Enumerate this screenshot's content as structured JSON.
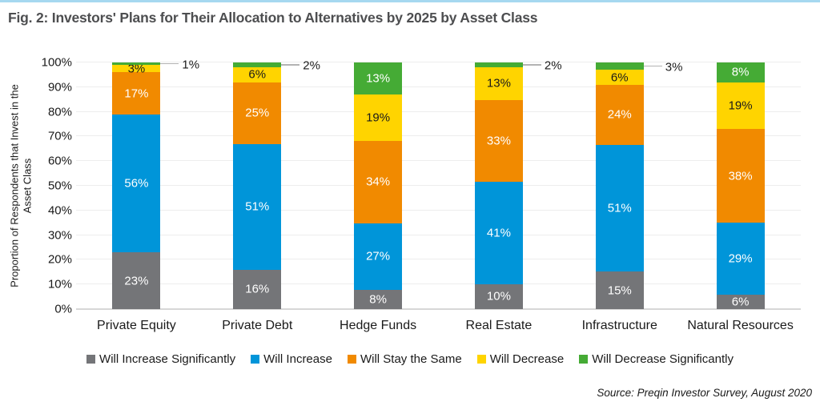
{
  "title": "Fig. 2: Investors' Plans for Their Allocation to Alternatives by 2025 by Asset Class",
  "source": "Source: Preqin Investor Survey, August 2020",
  "y_axis": {
    "label_lines": [
      "Proportion of Respondents that Invest in the",
      "Asset Class"
    ],
    "ticks": [
      "0%",
      "10%",
      "20%",
      "30%",
      "40%",
      "50%",
      "60%",
      "70%",
      "80%",
      "90%",
      "100%"
    ]
  },
  "legend": [
    {
      "label": "Will Increase Significantly",
      "color": "#747578"
    },
    {
      "label": "Will Increase",
      "color": "#0095D9"
    },
    {
      "label": "Will Stay the Same",
      "color": "#F18A00"
    },
    {
      "label": "Will Decrease",
      "color": "#FFD400"
    },
    {
      "label": "Will Decrease Significantly",
      "color": "#45AB35"
    }
  ],
  "chart_data": {
    "type": "bar",
    "stacked": true,
    "title": "Fig. 2: Investors' Plans for Their Allocation to Alternatives by 2025 by Asset Class",
    "xlabel": "",
    "ylabel": "Proportion of Respondents that Invest in the Asset Class",
    "ylim": [
      0,
      100
    ],
    "grid": true,
    "legend_position": "bottom",
    "categories": [
      "Private Equity",
      "Private Debt",
      "Hedge Funds",
      "Real Estate",
      "Infrastructure",
      "Natural Resources"
    ],
    "series": [
      {
        "name": "Will Increase Significantly",
        "color": "#747578",
        "label_color": "#ffffff",
        "values": [
          23,
          16,
          8,
          10,
          15,
          6
        ]
      },
      {
        "name": "Will Increase",
        "color": "#0095D9",
        "label_color": "#ffffff",
        "values": [
          56,
          51,
          27,
          41,
          51,
          29
        ]
      },
      {
        "name": "Will Stay the Same",
        "color": "#F18A00",
        "label_color": "#ffffff",
        "values": [
          17,
          25,
          34,
          33,
          24,
          38
        ]
      },
      {
        "name": "Will Decrease",
        "color": "#FFD400",
        "label_color": "#1a1a1a",
        "values": [
          3,
          6,
          19,
          13,
          6,
          19
        ]
      },
      {
        "name": "Will Decrease Significantly",
        "color": "#45AB35",
        "label_color": "#ffffff",
        "values": [
          1,
          2,
          13,
          2,
          3,
          8
        ]
      }
    ],
    "outside_callouts": [
      {
        "category_index": 0,
        "series_name": "Will Decrease Significantly",
        "label": "1%"
      },
      {
        "category_index": 1,
        "series_name": "Will Decrease Significantly",
        "label": "2%"
      },
      {
        "category_index": 3,
        "series_name": "Will Decrease Significantly",
        "label": "2%"
      },
      {
        "category_index": 4,
        "series_name": "Will Decrease Significantly",
        "label": "3%"
      }
    ]
  }
}
